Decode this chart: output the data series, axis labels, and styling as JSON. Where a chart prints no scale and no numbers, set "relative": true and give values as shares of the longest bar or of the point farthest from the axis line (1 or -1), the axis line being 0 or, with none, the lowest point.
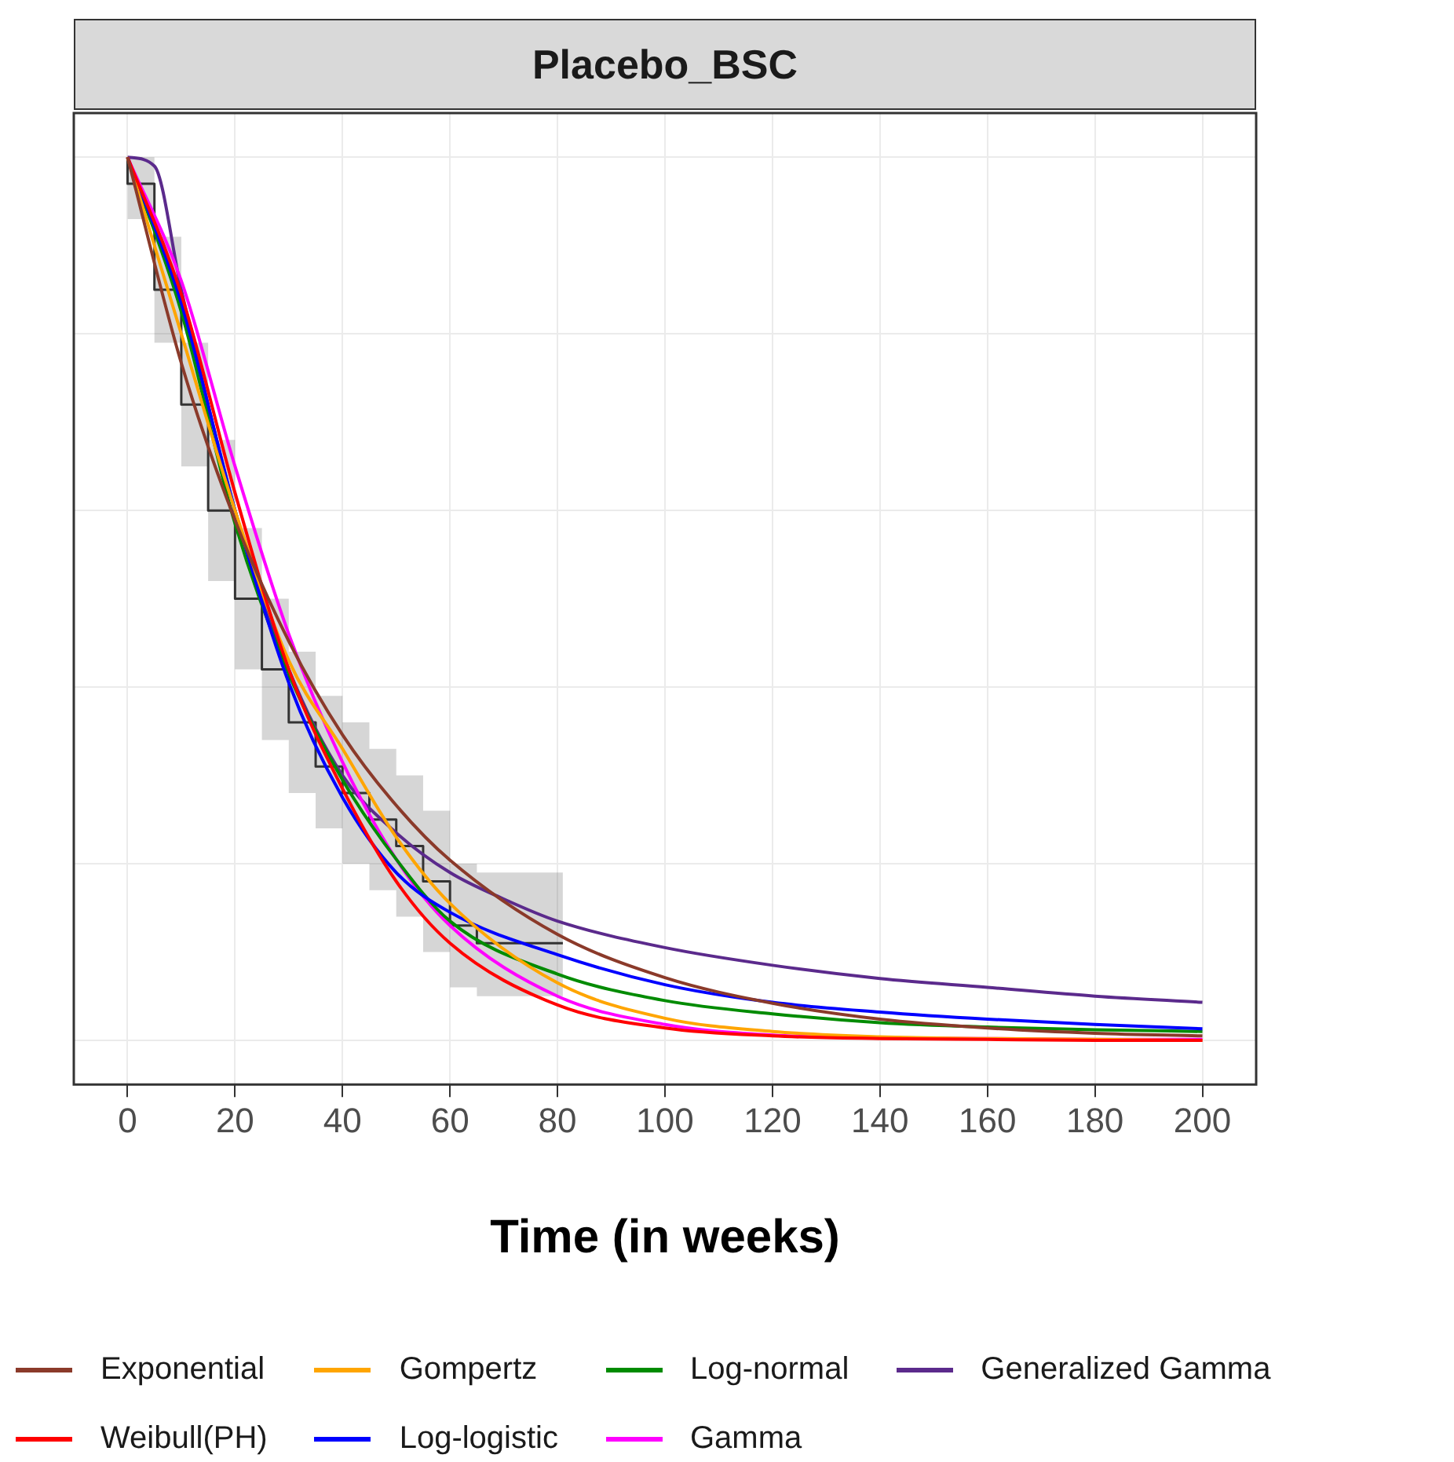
{
  "chart_data": {
    "type": "line",
    "title": "Placebo_BSC",
    "xlabel": "Time (in weeks)",
    "relative": true,
    "xlim": [
      -10,
      210
    ],
    "xticks": [
      0,
      20,
      40,
      60,
      80,
      100,
      120,
      140,
      160,
      180,
      200
    ],
    "tick_labels": "x",
    "grid": true,
    "legend": "bottom",
    "marker": "none",
    "line_style": "solid",
    "x": [
      0,
      10,
      20,
      30,
      40,
      50,
      60,
      80,
      100,
      120,
      140,
      160,
      180,
      200
    ],
    "series": [
      {
        "type": "step",
        "color": "#333333",
        "x": [
          0,
          5,
          10,
          15,
          20,
          25,
          30,
          35,
          40,
          45,
          50,
          55,
          60,
          65,
          70,
          75,
          81
        ],
        "values": [
          1,
          0.97,
          0.85,
          0.72,
          0.6,
          0.5,
          0.42,
          0.36,
          0.31,
          0.28,
          0.25,
          0.22,
          0.18,
          0.13,
          0.11,
          0.11,
          0.11
        ],
        "lower": [
          1,
          0.93,
          0.79,
          0.65,
          0.52,
          0.42,
          0.34,
          0.28,
          0.24,
          0.2,
          0.17,
          0.14,
          0.1,
          0.06,
          0.05,
          0.05,
          0.05
        ],
        "upper": [
          1,
          1,
          0.91,
          0.79,
          0.68,
          0.58,
          0.5,
          0.44,
          0.39,
          0.36,
          0.33,
          0.3,
          0.26,
          0.2,
          0.19,
          0.19,
          0.19
        ]
      },
      {
        "name": "Exponential",
        "color": "#8b3a2a",
        "values": [
          1,
          0.767,
          0.589,
          0.452,
          0.346,
          0.266,
          0.204,
          0.12,
          0.071,
          0.042,
          0.024,
          0.014,
          0.008,
          0.005
        ]
      },
      {
        "name": "Weibull(PH)",
        "color": "#ff0000",
        "values": [
          1,
          0.845,
          0.62,
          0.42,
          0.285,
          0.18,
          0.11,
          0.04,
          0.014,
          0.005,
          0.002,
          0.001,
          0,
          0
        ]
      },
      {
        "name": "Gompertz",
        "color": "#ffa500",
        "values": [
          1,
          0.8,
          0.6,
          0.43,
          0.33,
          0.23,
          0.155,
          0.065,
          0.025,
          0.01,
          0.004,
          0.002,
          0.001,
          0
        ]
      },
      {
        "name": "Log-logistic",
        "color": "#0000ff",
        "values": [
          1,
          0.835,
          0.6,
          0.405,
          0.275,
          0.19,
          0.145,
          0.097,
          0.063,
          0.043,
          0.032,
          0.024,
          0.018,
          0.013
        ]
      },
      {
        "name": "Log-normal",
        "color": "#008b00",
        "values": [
          1,
          0.825,
          0.585,
          0.415,
          0.295,
          0.205,
          0.135,
          0.075,
          0.045,
          0.03,
          0.02,
          0.015,
          0.012,
          0.01
        ]
      },
      {
        "name": "Gamma",
        "color": "#ff00ff",
        "values": [
          1,
          0.86,
          0.65,
          0.46,
          0.315,
          0.205,
          0.13,
          0.05,
          0.018,
          0.006,
          0.003,
          0.002,
          0.001,
          0.001
        ]
      },
      {
        "name": "Generalized Gamma",
        "color": "#5b2a8c",
        "x": [
          0,
          5,
          10,
          20,
          30,
          40,
          50,
          60,
          70,
          80,
          100,
          120,
          140,
          160,
          180,
          200
        ],
        "values": [
          1,
          0.99,
          0.85,
          0.6,
          0.42,
          0.3,
          0.235,
          0.19,
          0.16,
          0.135,
          0.105,
          0.085,
          0.07,
          0.06,
          0.05,
          0.043
        ]
      }
    ]
  }
}
